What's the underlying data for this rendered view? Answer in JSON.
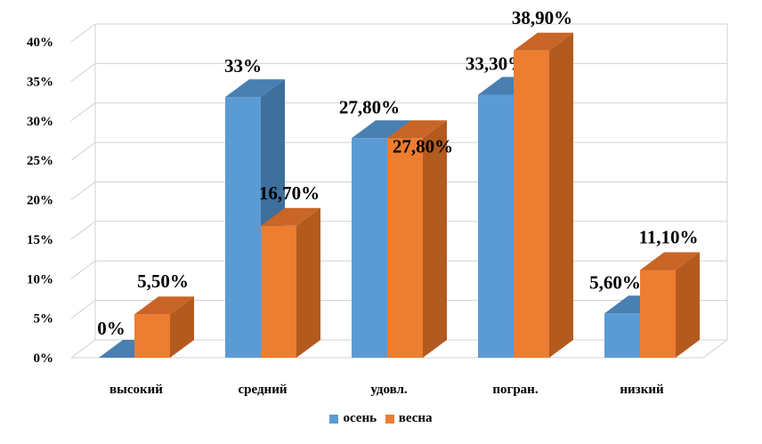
{
  "chart_data": {
    "type": "bar",
    "categories": [
      "высокий",
      "средний",
      "удовл.",
      "погран.",
      "низкий"
    ],
    "series": [
      {
        "name": "осень",
        "color": "#5b9bd5",
        "side_color": "#3f6f9c",
        "top_color": "#4a7fb2",
        "values": [
          0,
          33,
          27.8,
          33.3,
          5.6
        ],
        "labels": [
          "0%",
          "33%",
          "27,80%",
          "33,30%",
          "5,60%"
        ]
      },
      {
        "name": "весна",
        "color": "#ed7d31",
        "side_color": "#b35a1f",
        "top_color": "#c96526",
        "values": [
          5.5,
          16.7,
          27.8,
          38.9,
          11.1
        ],
        "labels": [
          "5,50%",
          "16,70%",
          "27,80%",
          "38,90%",
          "11,10%"
        ]
      }
    ],
    "y_ticks": [
      "0%",
      "5%",
      "10%",
      "15%",
      "20%",
      "25%",
      "30%",
      "35%",
      "40%"
    ],
    "ylim": [
      0,
      40
    ],
    "grid": true,
    "legend_position": "bottom",
    "three_d": true
  }
}
